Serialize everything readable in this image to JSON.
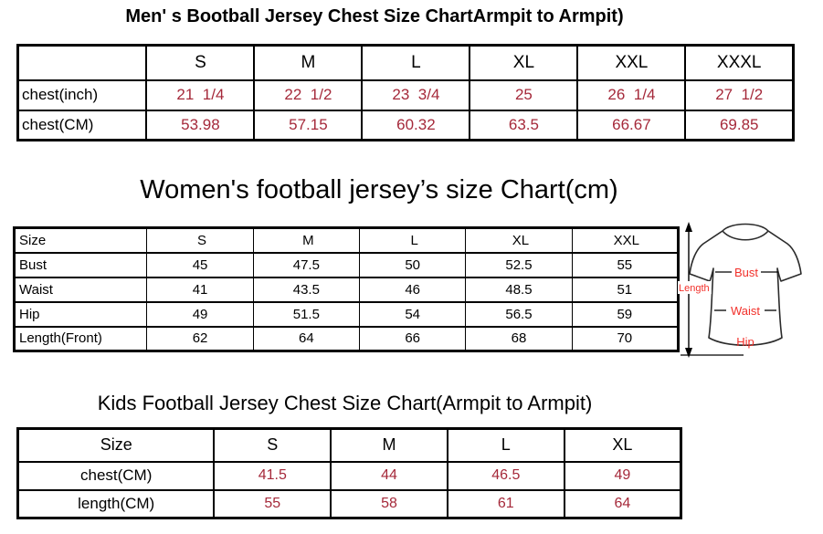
{
  "colors": {
    "table_value_red": "#a5293a",
    "diagram_label_red": "#f2302a",
    "border_black": "#000000",
    "background": "#ffffff"
  },
  "mens_chart": {
    "title": "Men' s Bootball Jersey Chest Size ChartArmpit to Armpit)",
    "columns": [
      "",
      "S",
      "M",
      "L",
      "XL",
      "XXL",
      "XXXL"
    ],
    "rows": [
      {
        "label": "chest(inch)",
        "values": [
          "21  1/4",
          "22  1/2",
          "23  3/4",
          "25",
          "26  1/4",
          "27  1/2"
        ]
      },
      {
        "label": "chest(CM)",
        "values": [
          "53.98",
          "57.15",
          "60.32",
          "63.5",
          "66.67",
          "69.85"
        ]
      }
    ]
  },
  "womens_chart": {
    "title": "Women's football jersey’s size Chart(cm)",
    "columns": [
      "Size",
      "S",
      "M",
      "L",
      "XL",
      "XXL"
    ],
    "rows": [
      {
        "label": "Bust",
        "values": [
          "45",
          "47.5",
          "50",
          "52.5",
          "55"
        ]
      },
      {
        "label": "Waist",
        "values": [
          "41",
          "43.5",
          "46",
          "48.5",
          "51"
        ]
      },
      {
        "label": "Hip",
        "values": [
          "49",
          "51.5",
          "54",
          "56.5",
          "59"
        ]
      },
      {
        "label": "Length(Front)",
        "values": [
          "62",
          "64",
          "66",
          "68",
          "70"
        ]
      }
    ],
    "diagram_labels": {
      "length": "Length",
      "bust": "Bust",
      "waist": "Waist",
      "hip": "Hip"
    }
  },
  "kids_chart": {
    "title": "Kids Football Jersey Chest Size Chart(Armpit to Armpit)",
    "columns": [
      "Size",
      "S",
      "M",
      "L",
      "XL"
    ],
    "rows": [
      {
        "label": "chest(CM)",
        "values": [
          "41.5",
          "44",
          "46.5",
          "49"
        ]
      },
      {
        "label": "length(CM)",
        "values": [
          "55",
          "58",
          "61",
          "64"
        ]
      }
    ]
  }
}
